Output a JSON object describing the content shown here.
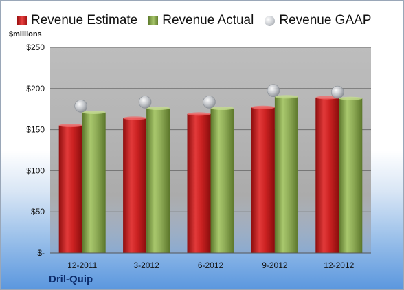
{
  "legend": {
    "estimate_label": "Revenue Estimate",
    "actual_label": "Revenue Actual",
    "gaap_label": "Revenue GAAP"
  },
  "unit_label": "$millions",
  "company_label": "Dril-Quip",
  "colors": {
    "estimate": "#d42a2a",
    "actual": "#8fae58",
    "gaap": "#c9ccd1"
  },
  "chart_data": {
    "type": "bar",
    "categories": [
      "12-2011",
      "3-2012",
      "6-2012",
      "9-2012",
      "12-2012"
    ],
    "series": [
      {
        "name": "Revenue Estimate",
        "values": [
          155,
          164,
          169,
          177,
          189
        ]
      },
      {
        "name": "Revenue Actual",
        "values": [
          171,
          176,
          176,
          190,
          188
        ]
      },
      {
        "name": "Revenue GAAP",
        "values": [
          171,
          176,
          176,
          190,
          188
        ]
      }
    ],
    "ylabel": "$millions",
    "ylim": [
      0,
      250
    ],
    "yticks": [
      0,
      50,
      100,
      150,
      200,
      250
    ],
    "ytick_labels": [
      "$-",
      "$50",
      "$100",
      "$150",
      "$200",
      "$250"
    ],
    "grid": true,
    "legend_position": "top"
  }
}
